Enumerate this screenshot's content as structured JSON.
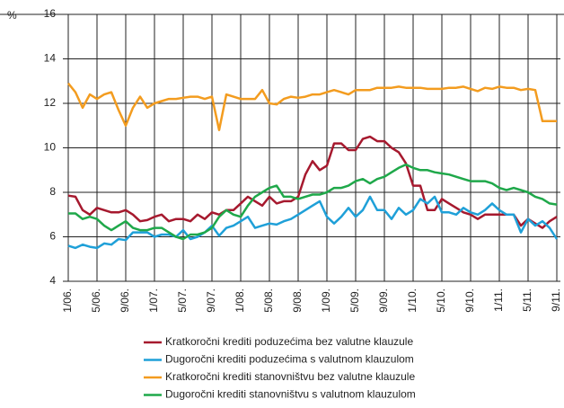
{
  "chart_data": {
    "type": "line",
    "y_label": "%",
    "categories": [
      "1/06.",
      null,
      null,
      null,
      "5/06.",
      null,
      null,
      null,
      "9/06.",
      null,
      null,
      null,
      "1/07.",
      null,
      null,
      null,
      "5/07.",
      null,
      null,
      null,
      "9/07.",
      null,
      null,
      null,
      "1/08.",
      null,
      null,
      null,
      "5/08.",
      null,
      null,
      null,
      "9/08.",
      null,
      null,
      null,
      "1/09.",
      null,
      null,
      null,
      "5/09.",
      null,
      null,
      null,
      "9/09.",
      null,
      null,
      null,
      "1/10.",
      null,
      null,
      null,
      "5/10.",
      null,
      null,
      null,
      "9/10.",
      null,
      null,
      null,
      "1/11.",
      null,
      null,
      null,
      "5/11.",
      null,
      null,
      null,
      "9/11."
    ],
    "ylim": [
      4,
      16
    ],
    "yticks": [
      4,
      6,
      8,
      10,
      12,
      14,
      16
    ],
    "grid": true,
    "series": [
      {
        "name": "Kratkoročni krediti poduzećima bez valutne klauzule",
        "color": "#a6192e",
        "values": [
          7.85,
          7.8,
          7.2,
          7.0,
          7.3,
          7.2,
          7.1,
          7.1,
          7.2,
          7.0,
          6.7,
          6.75,
          6.9,
          7.0,
          6.7,
          6.8,
          6.8,
          6.7,
          7.0,
          6.8,
          7.1,
          7.0,
          7.2,
          7.2,
          7.5,
          7.8,
          7.6,
          7.4,
          7.8,
          7.5,
          7.6,
          7.6,
          7.8,
          8.8,
          9.4,
          9.0,
          9.2,
          10.2,
          10.2,
          9.9,
          9.9,
          10.4,
          10.5,
          10.3,
          10.3,
          10.0,
          9.8,
          9.3,
          8.3,
          8.3,
          7.2,
          7.2,
          7.7,
          7.5,
          7.3,
          7.1,
          7.0,
          6.8,
          7.0,
          7.0,
          7.0,
          7.0,
          7.0,
          6.5,
          6.8,
          6.6,
          6.4,
          6.7,
          6.9
        ]
      },
      {
        "name": "Dugoročni krediti poduzećima s valutnom klauzulom",
        "color": "#1fa0d8",
        "values": [
          5.6,
          5.5,
          5.65,
          5.55,
          5.5,
          5.7,
          5.65,
          5.9,
          5.85,
          6.2,
          6.2,
          6.2,
          6.0,
          6.1,
          6.1,
          6.0,
          6.3,
          5.9,
          6.0,
          6.2,
          6.5,
          6.05,
          6.4,
          6.5,
          6.7,
          6.9,
          6.4,
          6.5,
          6.6,
          6.55,
          6.7,
          6.8,
          7.0,
          7.2,
          7.4,
          7.6,
          6.9,
          6.6,
          6.9,
          7.3,
          6.9,
          7.2,
          7.8,
          7.2,
          7.2,
          6.8,
          7.3,
          7.0,
          7.2,
          7.7,
          7.5,
          7.8,
          7.1,
          7.1,
          7.0,
          7.3,
          7.1,
          7.0,
          7.2,
          7.5,
          7.2,
          7.0,
          7.0,
          6.2,
          6.8,
          6.5,
          6.7,
          6.4,
          5.9
        ]
      },
      {
        "name": "Kratkoročni krediti stanovništvu bez valutne klauzule",
        "color": "#f39c1f",
        "values": [
          12.9,
          12.5,
          11.8,
          12.4,
          12.2,
          12.4,
          12.5,
          11.7,
          11.0,
          11.8,
          12.3,
          11.8,
          12.0,
          12.1,
          12.2,
          12.2,
          12.25,
          12.3,
          12.3,
          12.2,
          12.3,
          10.8,
          12.4,
          12.3,
          12.2,
          12.2,
          12.2,
          12.6,
          12.0,
          11.95,
          12.2,
          12.3,
          12.25,
          12.3,
          12.4,
          12.4,
          12.5,
          12.6,
          12.5,
          12.4,
          12.6,
          12.6,
          12.6,
          12.7,
          12.7,
          12.7,
          12.75,
          12.7,
          12.7,
          12.7,
          12.65,
          12.65,
          12.65,
          12.7,
          12.7,
          12.75,
          12.65,
          12.55,
          12.7,
          12.65,
          12.75,
          12.7,
          12.7,
          12.6,
          12.65,
          12.6,
          11.2,
          11.2,
          11.2
        ]
      },
      {
        "name": "Dugoročni krediti stanovništvu s valutnom klauzulom",
        "color": "#1fa84a",
        "values": [
          7.05,
          7.05,
          6.8,
          6.9,
          6.8,
          6.5,
          6.3,
          6.5,
          6.7,
          6.4,
          6.3,
          6.3,
          6.4,
          6.4,
          6.2,
          6.0,
          5.9,
          6.1,
          6.1,
          6.2,
          6.4,
          6.9,
          7.2,
          7.0,
          6.9,
          7.4,
          7.8,
          8.0,
          8.2,
          8.3,
          7.8,
          7.8,
          7.7,
          7.8,
          7.9,
          7.9,
          8.0,
          8.2,
          8.2,
          8.3,
          8.5,
          8.6,
          8.4,
          8.6,
          8.7,
          8.9,
          9.1,
          9.25,
          9.1,
          9.0,
          9.0,
          8.9,
          8.85,
          8.8,
          8.7,
          8.6,
          8.5,
          8.5,
          8.5,
          8.4,
          8.2,
          8.1,
          8.2,
          8.1,
          8.0,
          7.8,
          7.7,
          7.5,
          7.45
        ]
      }
    ]
  }
}
